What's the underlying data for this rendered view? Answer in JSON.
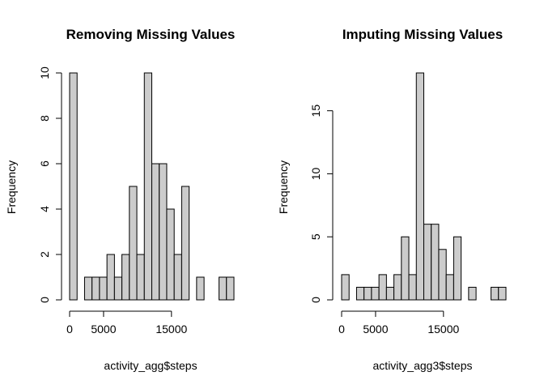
{
  "chart_data": [
    {
      "type": "bar",
      "title": "Removing Missing Values",
      "xlabel": "activity_agg$steps",
      "ylabel": "Frequency",
      "bin_width": 1100,
      "x_start": 0,
      "values": [
        10,
        0,
        1,
        1,
        1,
        2,
        1,
        2,
        5,
        2,
        10,
        6,
        6,
        4,
        2,
        5,
        0,
        1,
        0,
        0,
        1,
        1
      ],
      "xticks": [
        0,
        5000,
        15000
      ],
      "yticks": [
        0,
        2,
        4,
        6,
        8,
        10
      ],
      "xlim": [
        0,
        24200
      ],
      "ylim": [
        0,
        10
      ]
    },
    {
      "type": "bar",
      "title": "Imputing Missing Values",
      "xlabel": "activity_agg3$steps",
      "ylabel": "Frequency",
      "bin_width": 1100,
      "x_start": 0,
      "values": [
        2,
        0,
        1,
        1,
        1,
        2,
        1,
        2,
        5,
        2,
        18,
        6,
        6,
        4,
        2,
        5,
        0,
        1,
        0,
        0,
        1,
        1
      ],
      "xticks": [
        0,
        5000,
        15000
      ],
      "yticks": [
        0,
        5,
        10,
        15
      ],
      "xlim": [
        0,
        24200
      ],
      "ylim": [
        0,
        18
      ]
    }
  ]
}
